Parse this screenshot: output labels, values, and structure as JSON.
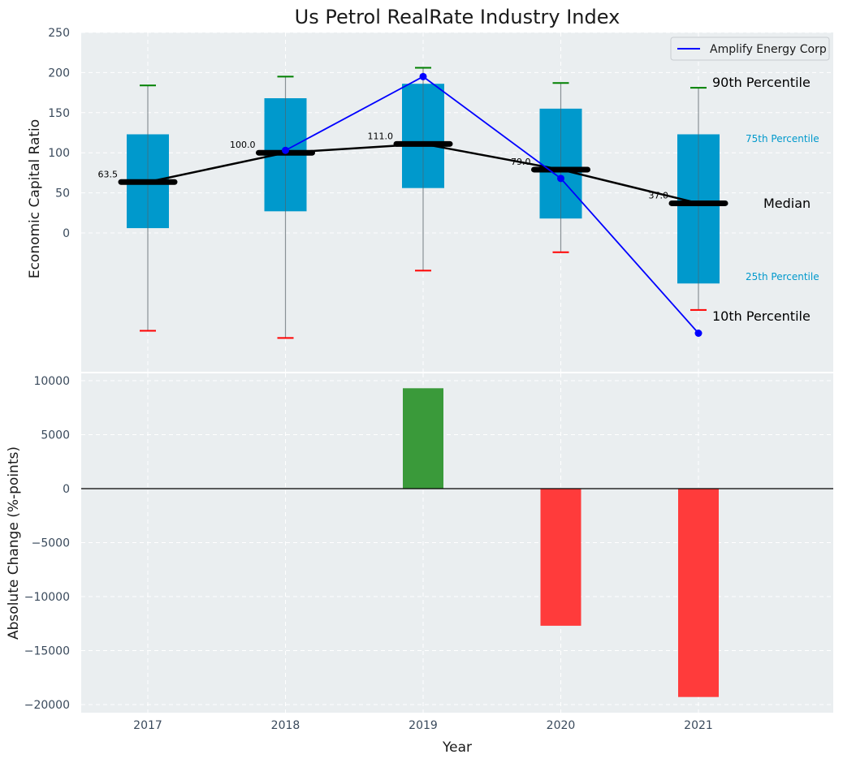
{
  "chart_data": [
    {
      "type": "box",
      "title": "Us Petrol RealRate Industry Index",
      "ylabel": "Economic Capital Ratio",
      "ylim": [
        -175,
        250
      ],
      "yticks": [
        0,
        50,
        100,
        150,
        200,
        250
      ],
      "categories": [
        "2017",
        "2018",
        "2019",
        "2020",
        "2021"
      ],
      "p10": [
        -122,
        -131,
        -47,
        -24,
        -96
      ],
      "p25": [
        6,
        27,
        56,
        18,
        -63
      ],
      "median": [
        63.5,
        100.0,
        111.0,
        79.0,
        37.0
      ],
      "median_labels": [
        "63.5",
        "100.0",
        "111.0",
        "79.0",
        "37.0"
      ],
      "p75": [
        123,
        168,
        186,
        155,
        123
      ],
      "p90": [
        184,
        195,
        206,
        187,
        181
      ],
      "company": {
        "name": "Amplify Energy Corp",
        "values": [
          null,
          103,
          195,
          68,
          -125
        ],
        "color": "#0000ff"
      },
      "percentile_labels": {
        "p90": "90th Percentile",
        "p75": "75th Percentile",
        "median": "Median",
        "p25": "25th Percentile",
        "p10": "10th Percentile"
      },
      "colors": {
        "box": "#0099cc",
        "whisker_top": "#008000",
        "whisker_bottom": "#ff0000",
        "median": "#000000",
        "background": "#eaeef0"
      },
      "legend": "top-right"
    },
    {
      "type": "bar",
      "ylabel": "Absolute Change (%-points)",
      "xlabel": "Year",
      "ylim": [
        -20600,
        10600
      ],
      "yticks": [
        -20000,
        -15000,
        -10000,
        -5000,
        0,
        5000,
        10000
      ],
      "ytick_labels": [
        "−20000",
        "−15000",
        "−10000",
        "−5000",
        "0",
        "5000",
        "10000"
      ],
      "categories": [
        "2017",
        "2018",
        "2019",
        "2020",
        "2021"
      ],
      "values": [
        0,
        0,
        9300,
        -12700,
        -19300
      ],
      "colors": {
        "positive": "#3a9a3a",
        "negative": "#ff3b3b"
      }
    }
  ]
}
